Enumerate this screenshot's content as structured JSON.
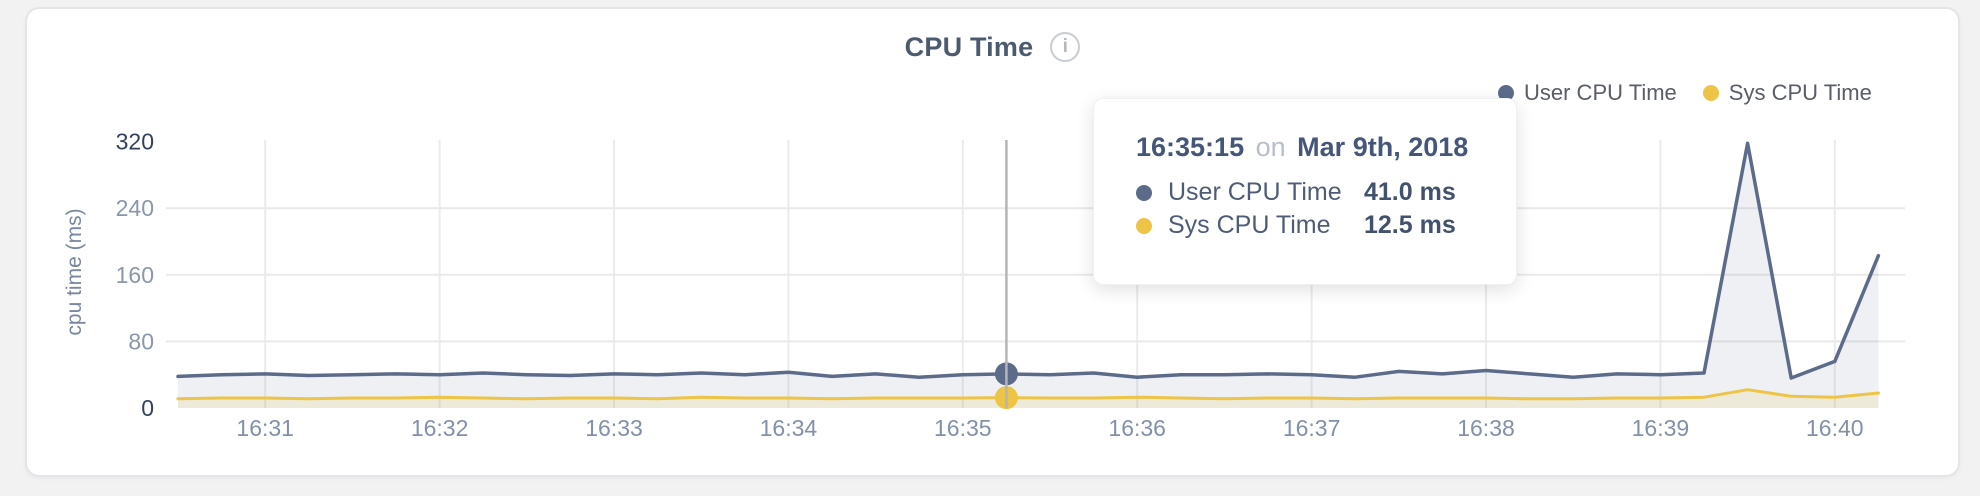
{
  "header": {
    "title": "CPU Time",
    "info_glyph": "i"
  },
  "tooltip": {
    "time": "16:35:15",
    "connector": "on",
    "date": "Mar 9th, 2018",
    "rows": [
      {
        "label": "User CPU Time",
        "value": "41.0 ms",
        "color": "#5c6b8a"
      },
      {
        "label": "Sys CPU Time",
        "value": "12.5 ms",
        "color": "#edc445"
      }
    ]
  },
  "chart_data": {
    "type": "area",
    "title": "CPU Time",
    "xlabel": "",
    "ylabel": "cpu time (ms)",
    "ylim": [
      0,
      320
    ],
    "yticks": [
      0,
      80,
      160,
      240,
      320
    ],
    "xticks": [
      "16:31",
      "16:32",
      "16:33",
      "16:34",
      "16:35",
      "16:36",
      "16:37",
      "16:38",
      "16:39",
      "16:40"
    ],
    "start_time": "16:30:30",
    "interval_seconds": 15,
    "grid": true,
    "legend_position": "top-right",
    "series": [
      {
        "name": "User CPU Time",
        "color": "#5c6b8a",
        "fill": "rgba(92,107,138,0.10)",
        "values": [
          38,
          40,
          41,
          39,
          40,
          41,
          40,
          42,
          40,
          39,
          41,
          40,
          42,
          40,
          43,
          38,
          41,
          37,
          40,
          41,
          40,
          42,
          37,
          40,
          40,
          41,
          40,
          37,
          44,
          41,
          45,
          41,
          37,
          41,
          40,
          42,
          318,
          36,
          56,
          183
        ]
      },
      {
        "name": "Sys CPU Time",
        "color": "#edc445",
        "fill": "rgba(237,196,69,0.14)",
        "values": [
          11,
          12,
          12,
          11,
          12,
          12,
          13,
          12,
          11,
          12,
          12,
          11,
          13,
          12,
          12,
          11,
          12,
          12,
          12,
          12.5,
          12,
          12,
          13,
          12,
          11,
          12,
          12,
          11,
          12,
          12,
          12,
          11,
          11,
          12,
          12,
          13,
          22,
          14,
          13,
          18
        ]
      }
    ],
    "hover": {
      "index": 19,
      "time": "16:35:15",
      "date": "Mar 9th, 2018"
    },
    "colors": {
      "grid": "#ebebeb",
      "crosshair": "#b5b5b5",
      "tick_label": "#8290a8",
      "tick_label_endpoint": "#33405e"
    }
  }
}
